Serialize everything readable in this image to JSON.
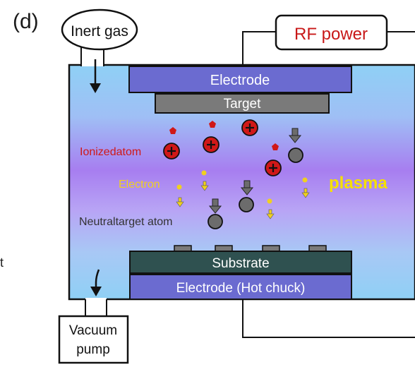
{
  "panel_label": "(d)",
  "edge_char": "t",
  "inert_gas": "Inert gas",
  "rf_power": "RF power",
  "electrode_top": "Electrode",
  "target": "Target",
  "ionized_atom": "Ionizedatom",
  "electron": "Electron",
  "neutral_target_atom": "Neutraltarget atom",
  "plasma": "plasma",
  "substrate": "Substrate",
  "electrode_bottom": "Electrode (Hot chuck)",
  "vacuum_pump_line1": "Vacuum",
  "vacuum_pump_line2": "pump",
  "colors": {
    "electrode": "#6b6bd0",
    "target": "#7a7a7a",
    "substrate": "#2f5150",
    "ion": "#d01818",
    "electron": "#f0d020",
    "neutral": "#6c6c6c",
    "plasma_text": "#f5e000",
    "rf_text": "#c81818"
  }
}
